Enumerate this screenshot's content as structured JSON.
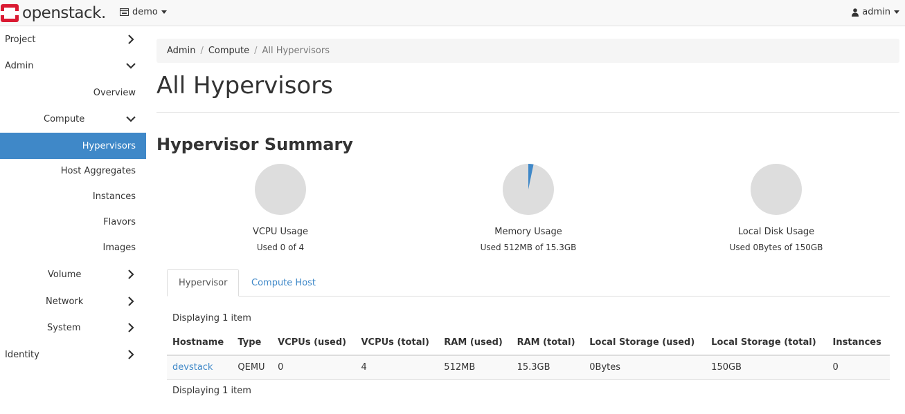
{
  "navbar": {
    "brand": "openstack.",
    "project": "demo",
    "user": "admin"
  },
  "sidebar": {
    "items": [
      {
        "label": "Project",
        "chevron": "right"
      },
      {
        "label": "Admin",
        "chevron": "down"
      },
      {
        "label": "Overview"
      },
      {
        "label": "Compute",
        "chevron": "down"
      },
      {
        "label": "Hypervisors",
        "active": true
      },
      {
        "label": "Host Aggregates"
      },
      {
        "label": "Instances"
      },
      {
        "label": "Flavors"
      },
      {
        "label": "Images"
      },
      {
        "label": "Volume",
        "chevron": "right"
      },
      {
        "label": "Network",
        "chevron": "right"
      },
      {
        "label": "System",
        "chevron": "right"
      },
      {
        "label": "Identity",
        "chevron": "right"
      }
    ]
  },
  "breadcrumb": [
    "Admin",
    "Compute",
    "All Hypervisors"
  ],
  "page_title": "All Hypervisors",
  "summary": {
    "title": "Hypervisor Summary",
    "charts": [
      {
        "label": "VCPU Usage",
        "sub": "Used 0 of 4",
        "fraction": 0.0
      },
      {
        "label": "Memory Usage",
        "sub": "Used 512MB of 15.3GB",
        "fraction": 0.0327
      },
      {
        "label": "Local Disk Usage",
        "sub": "Used 0Bytes of 150GB",
        "fraction": 0.0
      }
    ]
  },
  "tabs": [
    {
      "label": "Hypervisor",
      "active": true
    },
    {
      "label": "Compute Host",
      "active": false
    }
  ],
  "table": {
    "count_text": "Displaying 1 item",
    "headers": [
      "Hostname",
      "Type",
      "VCPUs (used)",
      "VCPUs (total)",
      "RAM (used)",
      "RAM (total)",
      "Local Storage (used)",
      "Local Storage (total)",
      "Instances"
    ],
    "rows": [
      [
        "devstack",
        "QEMU",
        "0",
        "4",
        "512MB",
        "15.3GB",
        "0Bytes",
        "150GB",
        "0"
      ]
    ]
  },
  "colors": {
    "accent": "#3f88c8",
    "brand_red": "#da1a32",
    "pie_bg": "#dddddd"
  }
}
